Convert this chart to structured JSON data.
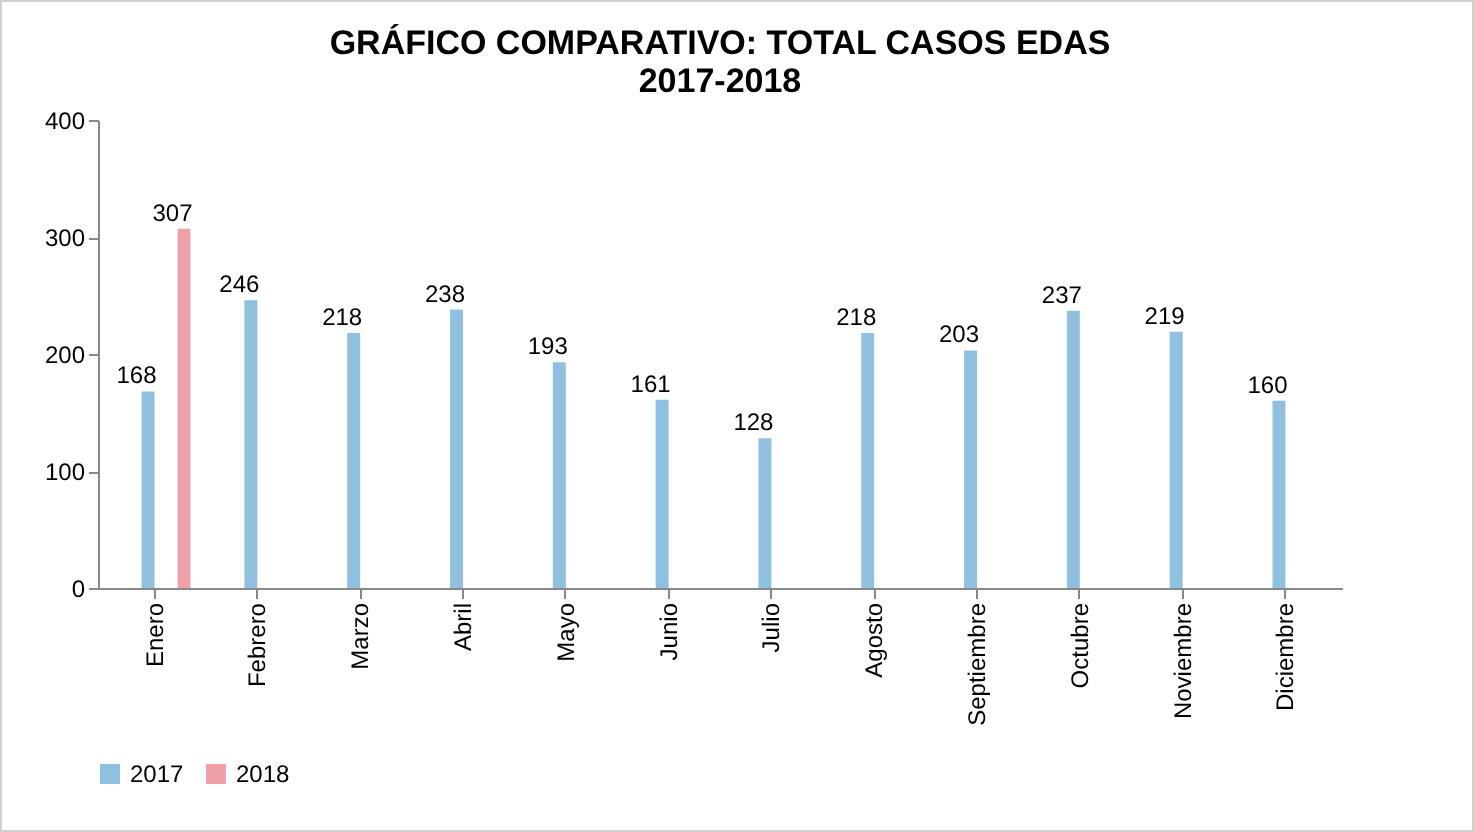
{
  "chart_data": {
    "type": "bar",
    "title": "GRÁFICO COMPARATIVO: TOTAL CASOS EDAS\n2017-2018",
    "categories": [
      "Enero",
      "Febrero",
      "Marzo",
      "Abril",
      "Mayo",
      "Junio",
      "Julio",
      "Agosto",
      "Septiembre",
      "Octubre",
      "Noviembre",
      "Diciembre"
    ],
    "series": [
      {
        "name": "2017",
        "color": "#8fc0e0",
        "values": [
          168,
          246,
          218,
          238,
          193,
          161,
          128,
          218,
          203,
          237,
          219,
          160
        ]
      },
      {
        "name": "2018",
        "color": "#f0a0a8",
        "values": [
          307,
          null,
          null,
          null,
          null,
          null,
          null,
          null,
          null,
          null,
          null,
          null
        ]
      }
    ],
    "ylim": [
      0,
      400
    ],
    "yticks": [
      0,
      100,
      200,
      300,
      400
    ],
    "grid": false,
    "legend": "bottom",
    "data_labels": true
  }
}
